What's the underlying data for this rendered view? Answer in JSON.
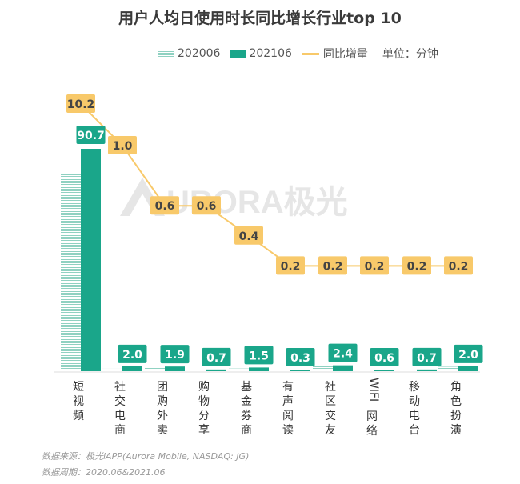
{
  "title": "用户人均日使用时长同比增长行业top 10",
  "legend": {
    "series_a": "202006",
    "series_b": "202106",
    "series_line": "同比增量",
    "unit": "单位：分钟"
  },
  "watermark": "URORA极光",
  "source": {
    "line1": "数据来源：极光iAPP(Aurora Mobile, NASDAQ: JG)",
    "line2": "数据周期：2020.06&2021.06"
  },
  "colors": {
    "series_a": "#8fd1c1",
    "series_b": "#1aa68a",
    "line": "#f8c96a",
    "line_label_bg": "#f8c96a",
    "bar_label_bg": "#1aa68a"
  },
  "chart_data": {
    "type": "bar",
    "categories": [
      "短视频",
      "社交电商",
      "团购外卖",
      "购物分享",
      "基金券商",
      "有声阅读",
      "社区交友",
      "WIFI网络",
      "移动电台",
      "角色扮演"
    ],
    "series": [
      {
        "name": "202006",
        "values": [
          80.5,
          1.0,
          1.3,
          0.1,
          1.1,
          0.1,
          2.2,
          0.4,
          0.5,
          1.8
        ]
      },
      {
        "name": "202106",
        "values": [
          90.7,
          2.0,
          1.9,
          0.7,
          1.5,
          0.3,
          2.4,
          0.6,
          0.7,
          2.0
        ]
      }
    ],
    "line": {
      "name": "同比增量",
      "values": [
        10.2,
        1.0,
        0.6,
        0.6,
        0.4,
        0.2,
        0.2,
        0.2,
        0.2,
        0.2
      ]
    },
    "legend_position": "top-right",
    "grid": false
  }
}
